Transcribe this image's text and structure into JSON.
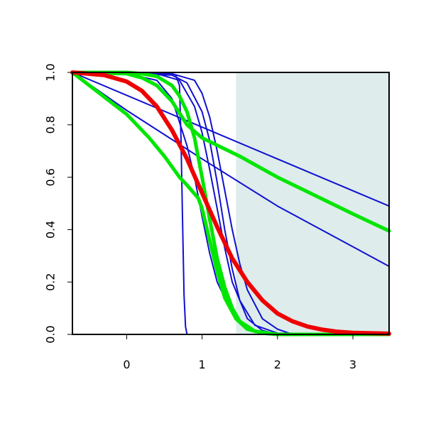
{
  "chart_data": {
    "type": "line",
    "title": "",
    "xlabel": "",
    "ylabel": "",
    "xlim": [
      -0.72,
      3.48
    ],
    "ylim": [
      0,
      1
    ],
    "x_ticks": [
      0,
      1,
      2,
      3
    ],
    "x_tick_labels": [
      "0",
      "1",
      "2",
      "3"
    ],
    "y_ticks": [
      0,
      0.2,
      0.4,
      0.6,
      0.8,
      1.0
    ],
    "y_tick_labels": [
      "0.0",
      "0.2",
      "0.4",
      "0.6",
      "0.8",
      "1.0"
    ],
    "shaded_region": {
      "x_start": 1.45,
      "x_end": 3.48,
      "color": "#deeceb"
    },
    "grid": false,
    "legend": "none",
    "colors": {
      "blue": "#1010d0",
      "green": "#00e600",
      "red": "#ee0000"
    },
    "series": [
      {
        "color": "#1010d0",
        "width": 2,
        "x": [
          -0.72,
          3.48
        ],
        "y": [
          1.0,
          0.49
        ]
      },
      {
        "color": "#1010d0",
        "width": 2,
        "x": [
          -0.72,
          0.0,
          1.0,
          2.0,
          3.48
        ],
        "y": [
          1.0,
          0.855,
          0.67,
          0.49,
          0.26
        ]
      },
      {
        "color": "#1010d0",
        "width": 2,
        "x": [
          -0.72,
          0.5,
          0.6,
          0.65,
          0.7,
          0.72,
          0.74,
          0.76,
          0.78,
          0.8,
          1.0,
          3.48
        ],
        "y": [
          1.0,
          1.0,
          0.995,
          0.99,
          0.95,
          0.75,
          0.45,
          0.15,
          0.03,
          0.0,
          0.0,
          0.0
        ]
      },
      {
        "color": "#1010d0",
        "width": 2,
        "x": [
          -0.72,
          0.0,
          0.4,
          0.6,
          0.8,
          0.9,
          1.0,
          1.1,
          1.2,
          1.4,
          1.6,
          2.0,
          3.48
        ],
        "y": [
          1.0,
          0.995,
          0.97,
          0.9,
          0.72,
          0.6,
          0.45,
          0.31,
          0.2,
          0.08,
          0.02,
          0.0,
          0.0
        ]
      },
      {
        "color": "#1010d0",
        "width": 2,
        "x": [
          -0.72,
          0.4,
          0.7,
          0.9,
          1.0,
          1.1,
          1.2,
          1.3,
          1.4,
          1.6,
          1.8,
          2.0,
          3.48
        ],
        "y": [
          1.0,
          0.995,
          0.97,
          0.87,
          0.77,
          0.63,
          0.48,
          0.33,
          0.2,
          0.06,
          0.015,
          0.0,
          0.0
        ]
      },
      {
        "color": "#1010d0",
        "width": 2,
        "x": [
          -0.72,
          0.6,
          0.8,
          1.0,
          1.1,
          1.2,
          1.3,
          1.4,
          1.5,
          1.7,
          2.0,
          3.48
        ],
        "y": [
          1.0,
          0.99,
          0.96,
          0.85,
          0.74,
          0.58,
          0.4,
          0.25,
          0.13,
          0.035,
          0.005,
          0.0
        ]
      },
      {
        "color": "#1010d0",
        "width": 2,
        "x": [
          -0.72,
          0.6,
          0.9,
          1.0,
          1.1,
          1.2,
          1.3,
          1.4,
          1.5,
          1.6,
          1.8,
          2.0,
          2.2,
          3.48
        ],
        "y": [
          1.0,
          0.995,
          0.97,
          0.92,
          0.83,
          0.7,
          0.55,
          0.4,
          0.27,
          0.17,
          0.06,
          0.02,
          0.0,
          0.0
        ]
      },
      {
        "color": "#00e600",
        "width": 5,
        "x": [
          -0.72,
          0.0,
          0.3,
          0.5,
          0.7,
          0.8,
          0.95,
          1.0,
          1.1,
          1.2,
          1.3,
          1.45,
          1.6,
          1.8,
          2.0,
          3.48
        ],
        "y": [
          1.0,
          0.84,
          0.75,
          0.68,
          0.6,
          0.57,
          0.52,
          0.48,
          0.36,
          0.24,
          0.14,
          0.06,
          0.02,
          0.005,
          0.0,
          0.0
        ]
      },
      {
        "color": "#00e600",
        "width": 5,
        "x": [
          -0.72,
          0.0,
          0.2,
          0.4,
          0.6,
          0.7,
          0.8,
          0.9,
          1.0,
          1.1,
          1.2,
          1.3,
          1.4,
          1.5,
          1.7,
          2.0,
          3.48
        ],
        "y": [
          1.0,
          1.0,
          0.995,
          0.985,
          0.95,
          0.91,
          0.85,
          0.75,
          0.6,
          0.44,
          0.29,
          0.18,
          0.1,
          0.05,
          0.012,
          0.0,
          0.0
        ]
      },
      {
        "color": "#00e600",
        "width": 5,
        "x": [
          -0.72,
          0.0,
          0.2,
          0.4,
          0.6,
          0.8,
          1.0,
          1.5,
          2.0,
          2.5,
          3.0,
          3.48
        ],
        "y": [
          1.0,
          0.995,
          0.98,
          0.95,
          0.89,
          0.8,
          0.75,
          0.68,
          0.6,
          0.53,
          0.46,
          0.395
        ]
      },
      {
        "color": "#ee0000",
        "width": 6,
        "x": [
          -0.72,
          -0.3,
          0.0,
          0.2,
          0.4,
          0.6,
          0.8,
          1.0,
          1.2,
          1.4,
          1.6,
          1.8,
          2.0,
          2.2,
          2.4,
          2.6,
          2.8,
          3.0,
          3.48
        ],
        "y": [
          1.0,
          0.99,
          0.965,
          0.93,
          0.87,
          0.78,
          0.67,
          0.54,
          0.41,
          0.29,
          0.2,
          0.13,
          0.08,
          0.05,
          0.03,
          0.018,
          0.01,
          0.006,
          0.003
        ]
      }
    ]
  }
}
